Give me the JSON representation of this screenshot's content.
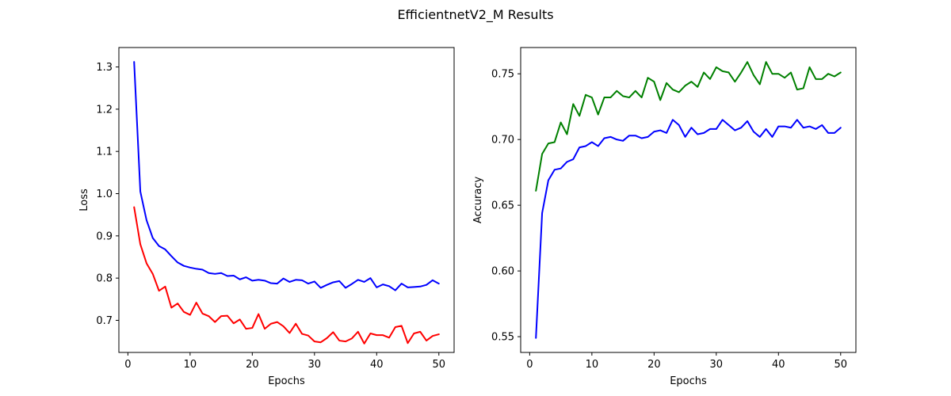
{
  "figure": {
    "title": "EfficientnetV2_M Results"
  },
  "chart_data": [
    {
      "type": "line",
      "title": "",
      "xlabel": "Epochs",
      "ylabel": "Loss",
      "xlim": [
        -1.45,
        52.45
      ],
      "ylim": [
        0.624,
        1.346
      ],
      "xticks": [
        0,
        10,
        20,
        30,
        40,
        50
      ],
      "yticks": [
        0.7,
        0.8,
        0.9,
        1.0,
        1.1,
        1.2,
        1.3
      ],
      "ytick_labels": [
        "0.7",
        "0.8",
        "0.9",
        "1.0",
        "1.1",
        "1.2",
        "1.3"
      ],
      "grid": false,
      "x": [
        1,
        2,
        3,
        4,
        5,
        6,
        7,
        8,
        9,
        10,
        11,
        12,
        13,
        14,
        15,
        16,
        17,
        18,
        19,
        20,
        21,
        22,
        23,
        24,
        25,
        26,
        27,
        28,
        29,
        30,
        31,
        32,
        33,
        34,
        35,
        36,
        37,
        38,
        39,
        40,
        41,
        42,
        43,
        44,
        45,
        46,
        47,
        48,
        49,
        50
      ],
      "series": [
        {
          "color": "#0000ff",
          "values": [
            1.312,
            1.005,
            0.937,
            0.895,
            0.876,
            0.868,
            0.852,
            0.837,
            0.829,
            0.825,
            0.822,
            0.82,
            0.812,
            0.81,
            0.812,
            0.805,
            0.806,
            0.797,
            0.802,
            0.794,
            0.796,
            0.794,
            0.788,
            0.787,
            0.799,
            0.791,
            0.796,
            0.795,
            0.787,
            0.792,
            0.777,
            0.784,
            0.79,
            0.793,
            0.777,
            0.786,
            0.796,
            0.791,
            0.8,
            0.778,
            0.785,
            0.781,
            0.771,
            0.787,
            0.778,
            0.779,
            0.78,
            0.784,
            0.795,
            0.787
          ]
        },
        {
          "color": "#ff0000",
          "values": [
            0.968,
            0.88,
            0.835,
            0.81,
            0.77,
            0.78,
            0.73,
            0.74,
            0.72,
            0.713,
            0.742,
            0.716,
            0.71,
            0.696,
            0.71,
            0.711,
            0.693,
            0.702,
            0.68,
            0.682,
            0.715,
            0.68,
            0.692,
            0.696,
            0.686,
            0.67,
            0.692,
            0.668,
            0.664,
            0.65,
            0.648,
            0.658,
            0.672,
            0.652,
            0.65,
            0.657,
            0.673,
            0.645,
            0.669,
            0.665,
            0.665,
            0.659,
            0.684,
            0.687,
            0.646,
            0.669,
            0.673,
            0.652,
            0.663,
            0.667
          ]
        }
      ]
    },
    {
      "type": "line",
      "title": "",
      "xlabel": "Epochs",
      "ylabel": "Accuracy",
      "xlim": [
        -1.45,
        52.45
      ],
      "ylim": [
        0.538,
        0.77
      ],
      "xticks": [
        0,
        10,
        20,
        30,
        40,
        50
      ],
      "yticks": [
        0.55,
        0.6,
        0.65,
        0.7,
        0.75
      ],
      "ytick_labels": [
        "0.55",
        "0.60",
        "0.65",
        "0.70",
        "0.75"
      ],
      "grid": false,
      "x": [
        1,
        2,
        3,
        4,
        5,
        6,
        7,
        8,
        9,
        10,
        11,
        12,
        13,
        14,
        15,
        16,
        17,
        18,
        19,
        20,
        21,
        22,
        23,
        24,
        25,
        26,
        27,
        28,
        29,
        30,
        31,
        32,
        33,
        34,
        35,
        36,
        37,
        38,
        39,
        40,
        41,
        42,
        43,
        44,
        45,
        46,
        47,
        48,
        49,
        50
      ],
      "series": [
        {
          "color": "#008000",
          "values": [
            0.661,
            0.689,
            0.697,
            0.698,
            0.713,
            0.704,
            0.727,
            0.718,
            0.734,
            0.732,
            0.719,
            0.732,
            0.732,
            0.737,
            0.733,
            0.732,
            0.737,
            0.732,
            0.747,
            0.744,
            0.73,
            0.743,
            0.738,
            0.736,
            0.741,
            0.744,
            0.74,
            0.751,
            0.746,
            0.755,
            0.752,
            0.751,
            0.744,
            0.751,
            0.759,
            0.749,
            0.742,
            0.759,
            0.75,
            0.75,
            0.747,
            0.751,
            0.738,
            0.739,
            0.755,
            0.746,
            0.746,
            0.75,
            0.748,
            0.751
          ]
        },
        {
          "color": "#0000ff",
          "values": [
            0.549,
            0.644,
            0.669,
            0.677,
            0.678,
            0.683,
            0.685,
            0.694,
            0.695,
            0.698,
            0.695,
            0.701,
            0.702,
            0.7,
            0.699,
            0.703,
            0.703,
            0.701,
            0.702,
            0.706,
            0.707,
            0.705,
            0.715,
            0.711,
            0.702,
            0.709,
            0.704,
            0.705,
            0.708,
            0.708,
            0.715,
            0.711,
            0.707,
            0.709,
            0.714,
            0.706,
            0.702,
            0.708,
            0.702,
            0.71,
            0.71,
            0.709,
            0.715,
            0.709,
            0.71,
            0.708,
            0.711,
            0.705,
            0.705,
            0.709
          ]
        }
      ]
    }
  ]
}
